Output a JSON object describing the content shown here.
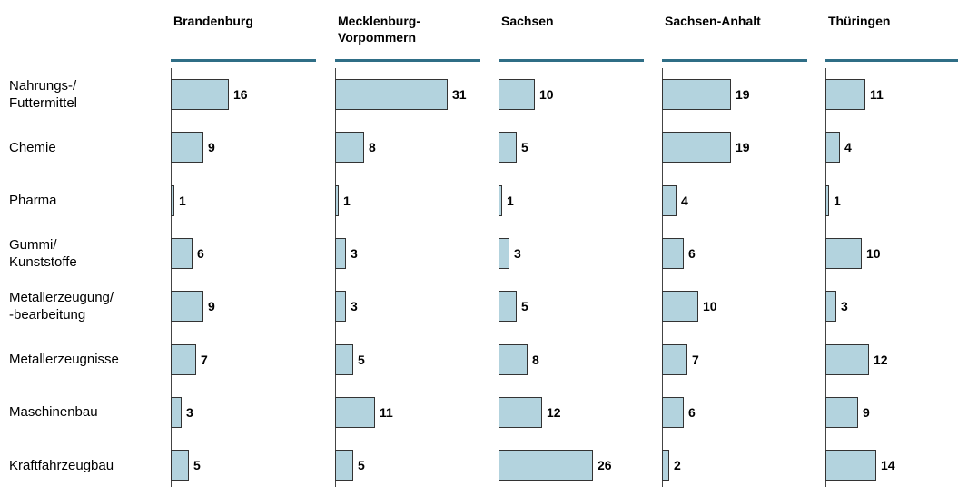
{
  "chart_data": {
    "type": "bar",
    "orientation": "horizontal",
    "small_multiples": true,
    "categories": [
      "Nahrungs-/\nFuttermittel",
      "Chemie",
      "Pharma",
      "Gummi/\nKunststoffe",
      "Metallerzeugung/\n-bearbeitung",
      "Metallerzeugnisse",
      "Maschinenbau",
      "Kraftfahrzeugbau"
    ],
    "series": [
      {
        "name": "Brandenburg",
        "color": "#b3d3de",
        "values": [
          16,
          9,
          1,
          6,
          9,
          7,
          3,
          5
        ]
      },
      {
        "name": "Mecklenburg-\nVorpommern",
        "color": "#b3d3de",
        "values": [
          31,
          8,
          1,
          3,
          3,
          5,
          11,
          5
        ]
      },
      {
        "name": "Sachsen",
        "color": "#b3d3de",
        "values": [
          10,
          5,
          1,
          3,
          5,
          8,
          12,
          26
        ]
      },
      {
        "name": "Sachsen-Anhalt",
        "color": "#b3d3de",
        "values": [
          19,
          19,
          4,
          6,
          10,
          7,
          6,
          2
        ]
      },
      {
        "name": "Thüringen",
        "color": "#b3d3de",
        "values": [
          11,
          4,
          1,
          10,
          3,
          12,
          9,
          14
        ]
      }
    ]
  }
}
